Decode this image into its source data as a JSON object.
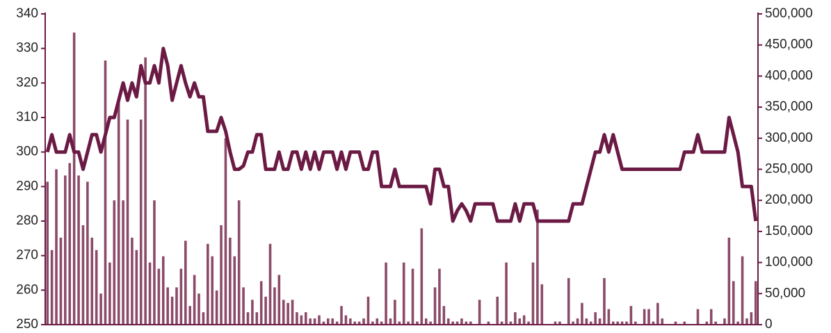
{
  "chart_data": {
    "type": "combo",
    "categories": [
      null,
      null,
      null,
      null,
      null,
      null,
      null,
      null,
      null,
      null,
      null,
      null,
      null,
      null,
      null,
      null,
      null,
      null,
      null,
      null,
      null,
      null,
      null,
      null,
      null,
      null,
      null,
      null,
      null,
      null,
      null,
      null,
      null,
      null,
      null,
      null,
      null,
      null,
      null,
      null,
      null,
      null,
      null,
      null,
      null,
      null,
      null,
      null,
      null,
      null,
      null,
      null,
      null,
      null,
      null,
      null,
      null,
      null,
      null,
      null,
      null,
      null,
      null,
      null,
      null,
      null,
      null,
      null,
      null,
      null,
      null,
      null,
      null,
      null,
      null,
      null,
      null,
      null,
      null,
      null,
      null,
      null,
      null,
      null,
      null,
      null,
      null,
      null,
      null,
      null,
      null,
      null,
      null,
      null,
      null,
      null,
      null,
      null,
      null,
      null,
      null,
      null,
      null,
      null,
      null,
      null,
      null,
      null,
      null,
      null,
      null,
      null,
      null,
      null,
      null,
      null,
      null,
      null,
      null,
      null,
      null,
      null,
      null,
      null,
      null,
      null,
      null,
      null,
      null,
      null,
      null,
      null,
      null,
      null,
      null,
      null,
      null,
      null,
      null,
      null,
      null,
      null,
      null,
      null,
      null,
      null,
      null,
      null,
      null,
      null,
      null,
      null,
      null,
      null,
      null,
      null,
      null,
      null,
      null,
      null
    ],
    "series": [
      {
        "type": "bar",
        "axis": "y2",
        "color": "#8b4a68",
        "values": [
          230000,
          120000,
          250000,
          140000,
          240000,
          260000,
          470000,
          240000,
          160000,
          230000,
          140000,
          120000,
          50000,
          425000,
          100000,
          200000,
          360000,
          200000,
          330000,
          140000,
          120000,
          330000,
          430000,
          100000,
          200000,
          90000,
          110000,
          60000,
          45000,
          60000,
          90000,
          135000,
          30000,
          80000,
          50000,
          20000,
          130000,
          110000,
          55000,
          160000,
          300000,
          140000,
          110000,
          200000,
          60000,
          20000,
          40000,
          20000,
          70000,
          45000,
          130000,
          60000,
          80000,
          40000,
          35000,
          40000,
          20000,
          15000,
          20000,
          10000,
          10000,
          15000,
          5000,
          10000,
          10000,
          5000,
          30000,
          15000,
          10000,
          5000,
          5000,
          10000,
          45000,
          5000,
          10000,
          5000,
          100000,
          10000,
          40000,
          5000,
          100000,
          5000,
          90000,
          5000,
          155000,
          10000,
          5000,
          60000,
          90000,
          30000,
          10000,
          5000,
          5000,
          10000,
          5000,
          5000,
          0,
          40000,
          0,
          5000,
          0,
          45000,
          5000,
          100000,
          5000,
          20000,
          10000,
          15000,
          5000,
          100000,
          185000,
          65000,
          0,
          0,
          5000,
          5000,
          0,
          75000,
          5000,
          10000,
          35000,
          10000,
          5000,
          20000,
          10000,
          75000,
          25000,
          5000,
          5000,
          5000,
          5000,
          30000,
          5000,
          0,
          25000,
          25000,
          5000,
          35000,
          10000,
          0,
          0,
          5000,
          0,
          5000,
          0,
          0,
          25000,
          0,
          5000,
          25000,
          5000,
          0,
          10000,
          140000,
          70000,
          5000,
          110000,
          10000,
          20000,
          70000
        ]
      },
      {
        "type": "line",
        "axis": "y",
        "color": "#6b1a44",
        "values": [
          300,
          305,
          300,
          300,
          300,
          305,
          300,
          300,
          295,
          300,
          305,
          305,
          300,
          305,
          310,
          310,
          315,
          320,
          315,
          320,
          316,
          325,
          320,
          320,
          325,
          320,
          330,
          325,
          315,
          320,
          325,
          320,
          316,
          320,
          316,
          316,
          306,
          306,
          306,
          310,
          306,
          300,
          295,
          295,
          296,
          300,
          300,
          305,
          305,
          295,
          295,
          295,
          300,
          295,
          295,
          300,
          300,
          295,
          300,
          295,
          300,
          295,
          300,
          300,
          300,
          295,
          300,
          295,
          300,
          300,
          300,
          295,
          295,
          300,
          300,
          290,
          290,
          290,
          295,
          290,
          290,
          290,
          290,
          290,
          290,
          290,
          285,
          295,
          295,
          290,
          290,
          280,
          283,
          285,
          283,
          280,
          285,
          285,
          285,
          285,
          285,
          280,
          280,
          280,
          280,
          285,
          280,
          285,
          285,
          285,
          280,
          280,
          280,
          280,
          280,
          280,
          280,
          280,
          285,
          285,
          285,
          290,
          295,
          300,
          300,
          305,
          300,
          305,
          300,
          295,
          295,
          295,
          295,
          295,
          295,
          295,
          295,
          295,
          295,
          295,
          295,
          295,
          295,
          300,
          300,
          300,
          305,
          300,
          300,
          300,
          300,
          300,
          300,
          310,
          305,
          300,
          290,
          290,
          290,
          280
        ]
      }
    ],
    "ylim": [
      250,
      340
    ],
    "yticks": [
      250,
      260,
      270,
      280,
      290,
      300,
      310,
      320,
      330,
      340
    ],
    "y2lim": [
      0,
      500000
    ],
    "y2ticks": [
      0,
      {
        "value": 50000,
        "label": "50,000"
      },
      {
        "value": 100000,
        "label": "100,000"
      },
      {
        "value": 150000,
        "label": "150,000"
      },
      {
        "value": 200000,
        "label": "200,000"
      },
      {
        "value": 250000,
        "label": "250,000"
      },
      {
        "value": 300000,
        "label": "300,000"
      },
      {
        "value": 350000,
        "label": "350,000"
      },
      {
        "value": 400000,
        "label": "400,000"
      },
      {
        "value": 450000,
        "label": "450,000"
      },
      {
        "value": 500000,
        "label": "500,000"
      }
    ],
    "axis_color": "#6b1a44"
  }
}
